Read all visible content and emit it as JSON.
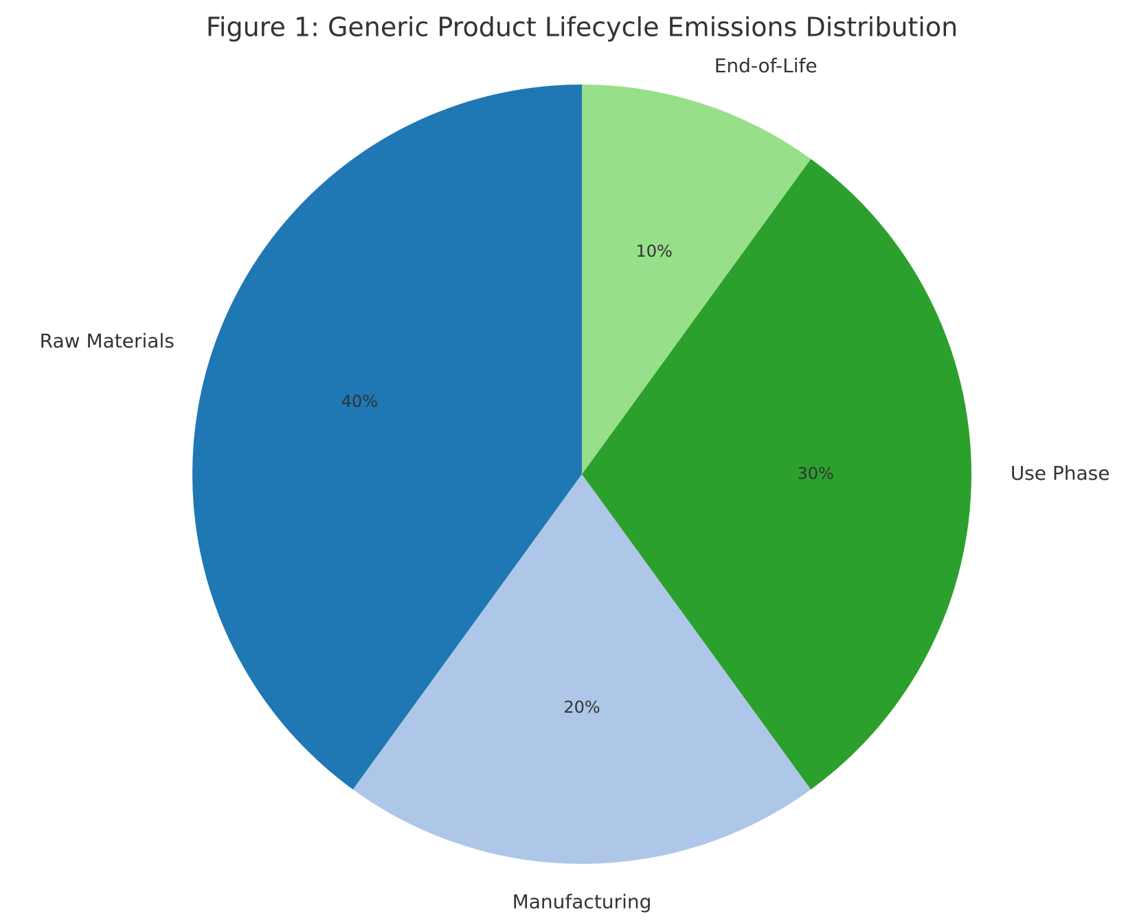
{
  "chart_data": {
    "type": "pie",
    "title": "Figure 1: Generic Product Lifecycle Emissions Distribution",
    "categories": [
      "Raw Materials",
      "Manufacturing",
      "Use Phase",
      "End-of-Life"
    ],
    "values": [
      40,
      20,
      30,
      10
    ],
    "value_labels": [
      "40%",
      "20%",
      "30%",
      "10%"
    ],
    "colors": [
      "#1f77b4",
      "#aec7e8",
      "#2ca02c",
      "#98df8a"
    ]
  }
}
